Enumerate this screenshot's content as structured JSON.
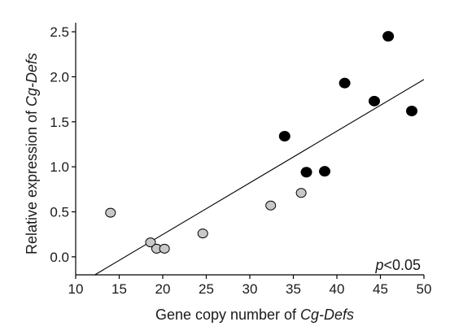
{
  "chart_data": {
    "type": "scatter",
    "xlabel": {
      "prefix": "Gene copy number of ",
      "italic": "Cg-Defs"
    },
    "ylabel": {
      "prefix": "Relative expression of ",
      "italic": "Cg-Defs"
    },
    "xlim": [
      10,
      50
    ],
    "ylim": [
      -0.2,
      2.6
    ],
    "xticks": [
      10,
      15,
      20,
      25,
      30,
      35,
      40,
      45,
      50
    ],
    "yticks": [
      0.0,
      0.5,
      1.0,
      1.5,
      2.0,
      2.5
    ],
    "ytick_labels": [
      "0.0",
      "0.5",
      "1.0",
      "1.5",
      "2.0",
      "2.5"
    ],
    "grid": false,
    "annotation": {
      "italic": "p",
      "rest": "<0.05"
    },
    "series": [
      {
        "color": "#c8c8c8",
        "points": [
          {
            "x": 14.0,
            "y": 0.49
          },
          {
            "x": 18.6,
            "y": 0.16
          },
          {
            "x": 19.3,
            "y": 0.09
          },
          {
            "x": 20.2,
            "y": 0.09
          },
          {
            "x": 24.6,
            "y": 0.26
          },
          {
            "x": 32.4,
            "y": 0.57
          },
          {
            "x": 35.9,
            "y": 0.71
          }
        ]
      },
      {
        "color": "#000000",
        "points": [
          {
            "x": 34.0,
            "y": 1.34
          },
          {
            "x": 36.5,
            "y": 0.94
          },
          {
            "x": 38.6,
            "y": 0.95
          },
          {
            "x": 40.9,
            "y": 1.93
          },
          {
            "x": 44.3,
            "y": 1.73
          },
          {
            "x": 45.9,
            "y": 2.45
          },
          {
            "x": 48.6,
            "y": 1.62
          }
        ]
      }
    ],
    "fit_line": {
      "x": [
        12.2,
        50.0
      ],
      "y": [
        -0.2,
        1.97
      ]
    }
  }
}
